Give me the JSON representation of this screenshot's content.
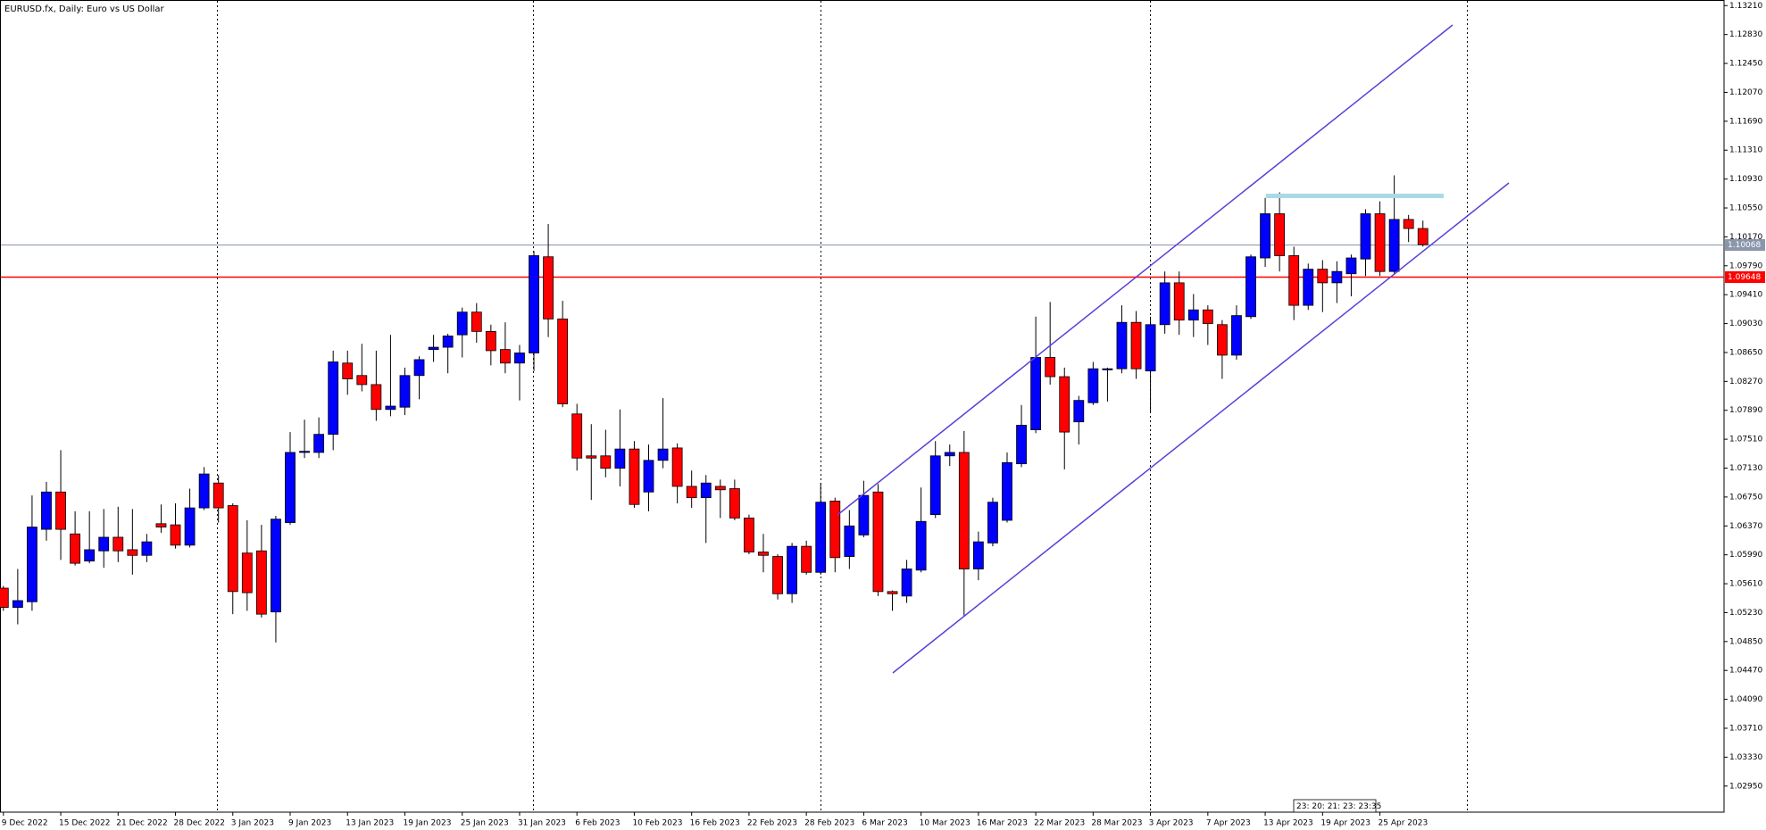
{
  "chart_data": {
    "type": "candlestick",
    "title": "EURUSD.fx, Daily:  Euro vs US Dollar",
    "overlay_text": "23: 20: 21: 23: 23:35",
    "up_color": "#0000ff",
    "down_color": "#ff0000",
    "categories": [
      "9 Dec 2022",
      null,
      null,
      null,
      "15 Dec 2022",
      null,
      null,
      null,
      "21 Dec 2022",
      null,
      null,
      null,
      "28 Dec 2022",
      null,
      null,
      null,
      "3 Jan 2023",
      null,
      null,
      null,
      "9 Jan 2023",
      null,
      null,
      null,
      "13 Jan 2023",
      null,
      null,
      null,
      "19 Jan 2023",
      null,
      null,
      null,
      "25 Jan 2023",
      null,
      null,
      null,
      "31 Jan 2023",
      null,
      null,
      null,
      "6 Feb 2023",
      null,
      null,
      null,
      "10 Feb 2023",
      null,
      null,
      null,
      "16 Feb 2023",
      null,
      null,
      null,
      "22 Feb 2023",
      null,
      null,
      null,
      "28 Feb 2023",
      null,
      null,
      null,
      "6 Mar 2023",
      null,
      null,
      null,
      "10 Mar 2023",
      null,
      null,
      null,
      "16 Mar 2023",
      null,
      null,
      null,
      "22 Mar 2023",
      null,
      null,
      null,
      "28 Mar 2023",
      null,
      null,
      null,
      "3 Apr 2023",
      null,
      null,
      null,
      "7 Apr 2023",
      null,
      null,
      null,
      "13 Apr 2023",
      null,
      null,
      null,
      "19 Apr 2023",
      null,
      null,
      null,
      "25 Apr 2023",
      null,
      null,
      null
    ],
    "open": [
      1.05552,
      1.05299,
      1.05373,
      1.06325,
      1.06816,
      1.06265,
      1.05908,
      1.06042,
      1.06221,
      1.06057,
      1.05983,
      1.06399,
      1.06384,
      1.06117,
      1.06607,
      1.06934,
      1.06637,
      1.06013,
      1.06042,
      1.05239,
      1.06414,
      1.07336,
      1.07336,
      1.07574,
      1.08511,
      1.08347,
      1.08228,
      1.07901,
      1.07931,
      1.08347,
      1.08689,
      1.08719,
      1.08882,
      1.09181,
      1.08927,
      1.08689,
      1.08511,
      1.08644,
      1.09908,
      1.09091,
      1.07842,
      1.07291,
      1.07291,
      1.07128,
      1.07381,
      1.06816,
      1.07232,
      1.07395,
      1.0689,
      1.06741,
      1.0689,
      1.0686,
      1.06474,
      1.06027,
      1.05968,
      1.05478,
      1.06102,
      1.0576,
      1.06697,
      1.05968,
      1.06251,
      1.06816,
      1.05507,
      1.05448,
      1.05789,
      1.06518,
      1.07291,
      1.07336,
      1.05804,
      1.06146,
      1.06444,
      1.07187,
      1.07634,
      1.08585,
      1.08332,
      1.07738,
      1.0799,
      1.08422,
      1.08436,
      1.09046,
      1.08407,
      1.09016,
      1.09566,
      1.09076,
      1.0921,
      1.09016,
      1.08615,
      1.09121,
      1.09893,
      1.10474,
      1.09923,
      1.0927,
      1.09745,
      1.09566,
      1.09685,
      1.09879,
      1.10474,
      1.09715,
      1.10399,
      1.1028
    ],
    "high": [
      1.05581,
      1.05804,
      1.06771,
      1.06949,
      1.07366,
      1.06563,
      1.06563,
      1.06592,
      1.06622,
      1.06592,
      1.06265,
      1.06652,
      1.06667,
      1.0686,
      1.07143,
      1.07039,
      1.06667,
      1.06444,
      1.06384,
      1.06503,
      1.07604,
      1.07767,
      1.07797,
      1.08674,
      1.08674,
      1.08764,
      1.08674,
      1.08882,
      1.08451,
      1.086,
      1.08882,
      1.08897,
      1.0924,
      1.093,
      1.09016,
      1.09046,
      1.08749,
      1.09983,
      1.1034,
      1.09329,
      1.07975,
      1.07708,
      1.07634,
      1.07901,
      1.07485,
      1.0744,
      1.0805,
      1.07455,
      1.07098,
      1.07039,
      1.06979,
      1.06979,
      1.06518,
      1.06265,
      1.05998,
      1.06146,
      1.06176,
      1.06934,
      1.06741,
      1.06578,
      1.06964,
      1.0692,
      1.05522,
      1.05923,
      1.06875,
      1.07485,
      1.0744,
      1.07619,
      1.06295,
      1.06741,
      1.07336,
      1.0796,
      1.09121,
      1.09314,
      1.08451,
      1.08079,
      1.08526,
      1.08451,
      1.0927,
      1.09195,
      1.09121,
      1.09715,
      1.09715,
      1.09418,
      1.0927,
      1.09076,
      1.0927,
      1.09938,
      1.10682,
      1.10756,
      1.10042,
      1.09819,
      1.09864,
      1.09849,
      1.09938,
      1.10533,
      1.10637,
      1.10979,
      1.10459,
      1.10384
    ],
    "low": [
      1.05254,
      1.05076,
      1.05254,
      1.06176,
      1.05923,
      1.05849,
      1.05879,
      1.05819,
      1.05894,
      1.0573,
      1.05894,
      1.0628,
      1.06072,
      1.06087,
      1.06578,
      1.06414,
      1.0521,
      1.05254,
      1.05165,
      1.04838,
      1.06384,
      1.07262,
      1.07262,
      1.07366,
      1.08094,
      1.08139,
      1.07752,
      1.07812,
      1.07827,
      1.08035,
      1.08526,
      1.08377,
      1.08585,
      1.08778,
      1.08481,
      1.08377,
      1.0802,
      1.08407,
      1.08853,
      1.07931,
      1.07098,
      1.06711,
      1.07009,
      1.0689,
      1.06607,
      1.06563,
      1.07128,
      1.06667,
      1.06607,
      1.06146,
      1.06474,
      1.06444,
      1.05998,
      1.0576,
      1.05403,
      1.05358,
      1.0573,
      1.0573,
      1.0576,
      1.05804,
      1.06221,
      1.05448,
      1.05254,
      1.05358,
      1.0576,
      1.06474,
      1.07158,
      1.0518,
      1.05656,
      1.06102,
      1.06414,
      1.07143,
      1.07589,
      1.08228,
      1.07113,
      1.0744,
      1.0796,
      1.08005,
      1.08377,
      1.08303,
      1.07857,
      1.08897,
      1.08882,
      1.08853,
      1.08749,
      1.08303,
      1.08556,
      1.09091,
      1.09775,
      1.09715,
      1.09076,
      1.0921,
      1.09181,
      1.093,
      1.09388,
      1.09656,
      1.09656,
      1.09671,
      1.10102,
      1.10042
    ],
    "close": [
      1.05299,
      1.05388,
      1.06355,
      1.06816,
      1.06325,
      1.05879,
      1.06057,
      1.06221,
      1.06042,
      1.05983,
      1.06161,
      1.06355,
      1.06117,
      1.06607,
      1.07053,
      1.06607,
      1.05507,
      1.05492,
      1.0521,
      1.06459,
      1.07336,
      1.07351,
      1.07574,
      1.08526,
      1.08303,
      1.08228,
      1.07901,
      1.07945,
      1.08347,
      1.08556,
      1.08719,
      1.08867,
      1.09181,
      1.08927,
      1.08674,
      1.08511,
      1.08644,
      1.09923,
      1.09091,
      1.07975,
      1.07262,
      1.07262,
      1.07128,
      1.07381,
      1.06652,
      1.07232,
      1.07381,
      1.0689,
      1.06741,
      1.06934,
      1.06845,
      1.06474,
      1.06027,
      1.05983,
      1.05478,
      1.06102,
      1.0576,
      1.06682,
      1.05953,
      1.0637,
      1.06771,
      1.05507,
      1.05478,
      1.05804,
      1.06429,
      1.07291,
      1.07336,
      1.05804,
      1.06161,
      1.06682,
      1.07202,
      1.07693,
      1.08585,
      1.08332,
      1.07604,
      1.0802,
      1.08436,
      1.08436,
      1.09046,
      1.08436,
      1.09016,
      1.09566,
      1.09076,
      1.0921,
      1.09031,
      1.08615,
      1.09135,
      1.09908,
      1.10474,
      1.09923,
      1.0927,
      1.09745,
      1.09566,
      1.09715,
      1.09893,
      1.10474,
      1.09715,
      1.10399,
      1.1028,
      1.10068
    ],
    "price_lines": [
      {
        "value": 1.10068,
        "color": "#8a96aa"
      },
      {
        "value": 1.09648,
        "color": "#ff0000"
      }
    ],
    "ylim": [
      1.02607,
      1.13284
    ],
    "yticks": [
      {
        "value": 1.1321,
        "label": "1.13210"
      },
      {
        "value": 1.1283,
        "label": "1.12830"
      },
      {
        "value": 1.1245,
        "label": "1.12450"
      },
      {
        "value": 1.1207,
        "label": "1.12070"
      },
      {
        "value": 1.1169,
        "label": "1.11690"
      },
      {
        "value": 1.1131,
        "label": "1.11310"
      },
      {
        "value": 1.1093,
        "label": "1.10930"
      },
      {
        "value": 1.1055,
        "label": "1.10550"
      },
      {
        "value": 1.1017,
        "label": "1.10170"
      },
      {
        "value": 1.0979,
        "label": "1.09790"
      },
      {
        "value": 1.0941,
        "label": "1.09410"
      },
      {
        "value": 1.0903,
        "label": "1.09030"
      },
      {
        "value": 1.0865,
        "label": "1.08650"
      },
      {
        "value": 1.0827,
        "label": "1.08270"
      },
      {
        "value": 1.0789,
        "label": "1.07890"
      },
      {
        "value": 1.0751,
        "label": "1.07510"
      },
      {
        "value": 1.0713,
        "label": "1.07130"
      },
      {
        "value": 1.0675,
        "label": "1.06750"
      },
      {
        "value": 1.0637,
        "label": "1.06370"
      },
      {
        "value": 1.0599,
        "label": "1.05990"
      },
      {
        "value": 1.0561,
        "label": "1.05610"
      },
      {
        "value": 1.0523,
        "label": "1.05230"
      },
      {
        "value": 1.0485,
        "label": "1.04850"
      },
      {
        "value": 1.0447,
        "label": "1.04470"
      },
      {
        "value": 1.0409,
        "label": "1.04090"
      },
      {
        "value": 1.0371,
        "label": "1.03710"
      },
      {
        "value": 1.0333,
        "label": "1.03330"
      },
      {
        "value": 1.0295,
        "label": "1.02950"
      }
    ],
    "grid": false
  }
}
